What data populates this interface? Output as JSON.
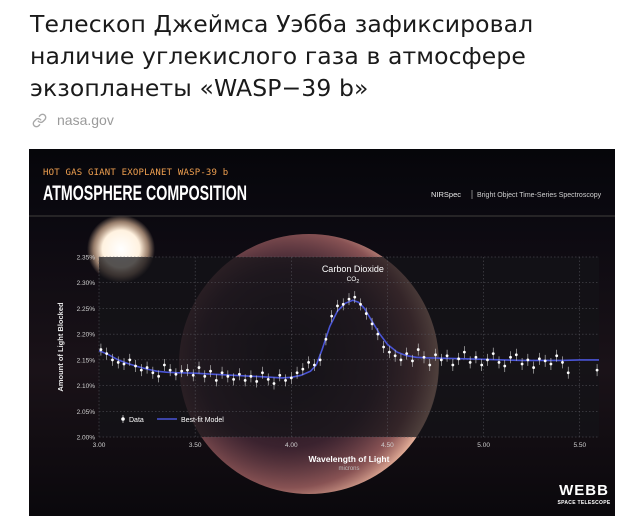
{
  "article": {
    "title": "Телескоп Джеймса Уэбба зафиксировал наличие углекислого газа в атмосфере экзопланеты «WASP−39 b»",
    "source_icon": "link-icon",
    "source": "nasa.gov"
  },
  "colors": {
    "headline_text": "#1a1a1a",
    "source_text": "#9a9a9a",
    "figure_background": "#06060a",
    "plot_background": "#141318",
    "grid": "#5a5a62",
    "model_line": "#4a55d6",
    "data_points": "#ffffff",
    "kicker_text": "#f0a050"
  },
  "chart_data": {
    "type": "scatter",
    "kicker": "HOT GAS GIANT EXOPLANET WASP-39 b",
    "title": "ATMOSPHERE COMPOSITION",
    "instrument": "NIRSpec",
    "instrument_detail": "Bright Object Time-Series Spectroscopy",
    "xlabel": "Wavelength of Light",
    "xunit": "microns",
    "ylabel": "Amount of Light Blocked",
    "xlim": [
      3.0,
      5.6
    ],
    "ylim": [
      2.0,
      2.35
    ],
    "xticks": [
      3.0,
      3.5,
      4.0,
      4.5,
      5.0,
      5.5
    ],
    "xtick_labels": [
      "3.00",
      "3.50",
      "4.00",
      "4.50",
      "5.00",
      "5.50"
    ],
    "yticks": [
      2.0,
      2.05,
      2.1,
      2.15,
      2.2,
      2.25,
      2.3,
      2.35
    ],
    "ytick_labels": [
      "2.00%",
      "2.05%",
      "2.10%",
      "2.15%",
      "2.20%",
      "2.25%",
      "2.30%",
      "2.35%"
    ],
    "grid": true,
    "legend": {
      "placement": "bottom-left",
      "entries": [
        "Data",
        "Best-fit Model"
      ]
    },
    "annotation": {
      "label": "Carbon Dioxide",
      "formula_main": "CO",
      "formula_sub": "2",
      "x": 4.32,
      "y": 2.305
    },
    "series": [
      {
        "name": "Data",
        "x": [
          3.01,
          3.04,
          3.07,
          3.1,
          3.13,
          3.16,
          3.19,
          3.22,
          3.25,
          3.28,
          3.31,
          3.34,
          3.37,
          3.4,
          3.43,
          3.46,
          3.49,
          3.52,
          3.55,
          3.58,
          3.61,
          3.64,
          3.67,
          3.7,
          3.73,
          3.76,
          3.79,
          3.82,
          3.85,
          3.88,
          3.91,
          3.94,
          3.97,
          4.0,
          4.03,
          4.06,
          4.09,
          4.12,
          4.15,
          4.18,
          4.21,
          4.24,
          4.27,
          4.3,
          4.33,
          4.36,
          4.39,
          4.42,
          4.45,
          4.48,
          4.51,
          4.54,
          4.57,
          4.6,
          4.63,
          4.66,
          4.69,
          4.72,
          4.75,
          4.78,
          4.81,
          4.84,
          4.87,
          4.9,
          4.93,
          4.96,
          4.99,
          5.02,
          5.05,
          5.08,
          5.11,
          5.14,
          5.17,
          5.2,
          5.23,
          5.26,
          5.29,
          5.32,
          5.35,
          5.38,
          5.41,
          5.44,
          5.59
        ],
        "y": [
          2.17,
          2.162,
          2.15,
          2.145,
          2.142,
          2.15,
          2.138,
          2.13,
          2.135,
          2.125,
          2.118,
          2.14,
          2.13,
          2.122,
          2.128,
          2.13,
          2.12,
          2.135,
          2.118,
          2.128,
          2.11,
          2.125,
          2.118,
          2.112,
          2.122,
          2.11,
          2.118,
          2.108,
          2.125,
          2.112,
          2.104,
          2.12,
          2.11,
          2.115,
          2.125,
          2.132,
          2.145,
          2.14,
          2.15,
          2.19,
          2.235,
          2.255,
          2.258,
          2.268,
          2.272,
          2.258,
          2.24,
          2.22,
          2.2,
          2.175,
          2.165,
          2.158,
          2.15,
          2.162,
          2.148,
          2.17,
          2.155,
          2.14,
          2.16,
          2.15,
          2.158,
          2.14,
          2.152,
          2.165,
          2.145,
          2.155,
          2.14,
          2.15,
          2.162,
          2.145,
          2.138,
          2.155,
          2.16,
          2.142,
          2.15,
          2.135,
          2.152,
          2.148,
          2.142,
          2.158,
          2.145,
          2.125,
          2.13
        ]
      },
      {
        "name": "Best-fit Model",
        "x": [
          3.0,
          3.05,
          3.1,
          3.15,
          3.2,
          3.25,
          3.3,
          3.35,
          3.4,
          3.5,
          3.6,
          3.7,
          3.8,
          3.9,
          3.95,
          4.0,
          4.05,
          4.1,
          4.13,
          4.16,
          4.2,
          4.24,
          4.28,
          4.32,
          4.35,
          4.38,
          4.42,
          4.46,
          4.5,
          4.55,
          4.6,
          4.65,
          4.7,
          4.8,
          4.9,
          5.0,
          5.1,
          5.2,
          5.3,
          5.4,
          5.5,
          5.6
        ],
        "y": [
          2.168,
          2.16,
          2.15,
          2.143,
          2.137,
          2.132,
          2.128,
          2.126,
          2.125,
          2.124,
          2.122,
          2.12,
          2.118,
          2.116,
          2.115,
          2.116,
          2.12,
          2.128,
          2.14,
          2.17,
          2.215,
          2.245,
          2.26,
          2.266,
          2.262,
          2.25,
          2.225,
          2.2,
          2.18,
          2.165,
          2.158,
          2.155,
          2.154,
          2.153,
          2.152,
          2.151,
          2.15,
          2.149,
          2.149,
          2.149,
          2.15,
          2.15
        ]
      }
    ]
  },
  "branding": {
    "logo_word": "WEBB",
    "logo_sub": "SPACE TELESCOPE"
  }
}
